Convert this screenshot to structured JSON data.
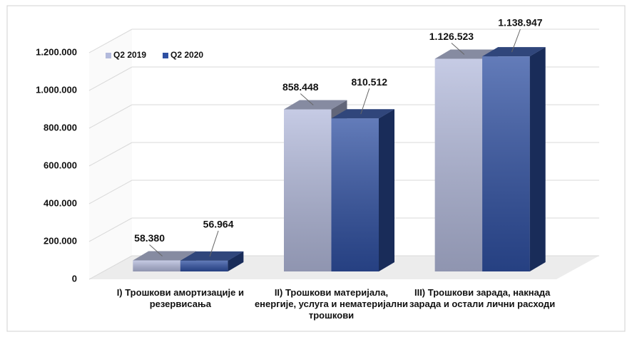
{
  "chart_data": {
    "type": "bar3d",
    "categories": [
      "I) Трошкови амортизације и резервисања",
      "II) Трошкови материјала, енергије, услуга и нематеријални трошкови",
      "III) Трошкови зарада, накнада зарада и остали лични расходи"
    ],
    "series": [
      {
        "name": "Q2 2019",
        "color": "#b3badc",
        "values": [
          58380,
          858448,
          1126523
        ],
        "value_labels": [
          "58.380",
          "858.448",
          "1.126.523"
        ]
      },
      {
        "name": "Q2 2020",
        "color": "#2f50a2",
        "values": [
          56964,
          810512,
          1138947
        ],
        "value_labels": [
          "56.964",
          "810.512",
          "1.138.947"
        ]
      }
    ],
    "ylim": [
      0,
      1200000
    ],
    "yticks": [
      0,
      {
        "value": 200000,
        "label": "200.000"
      },
      {
        "value": 400000,
        "label": "400.000"
      },
      {
        "value": 600000,
        "label": "600.000"
      },
      {
        "value": 800000,
        "label": "800.000"
      },
      {
        "value": 1000000,
        "label": "1.000.000"
      },
      {
        "value": 1200000,
        "label": "1.200.000"
      }
    ],
    "grid": true,
    "legend": "top-left"
  }
}
